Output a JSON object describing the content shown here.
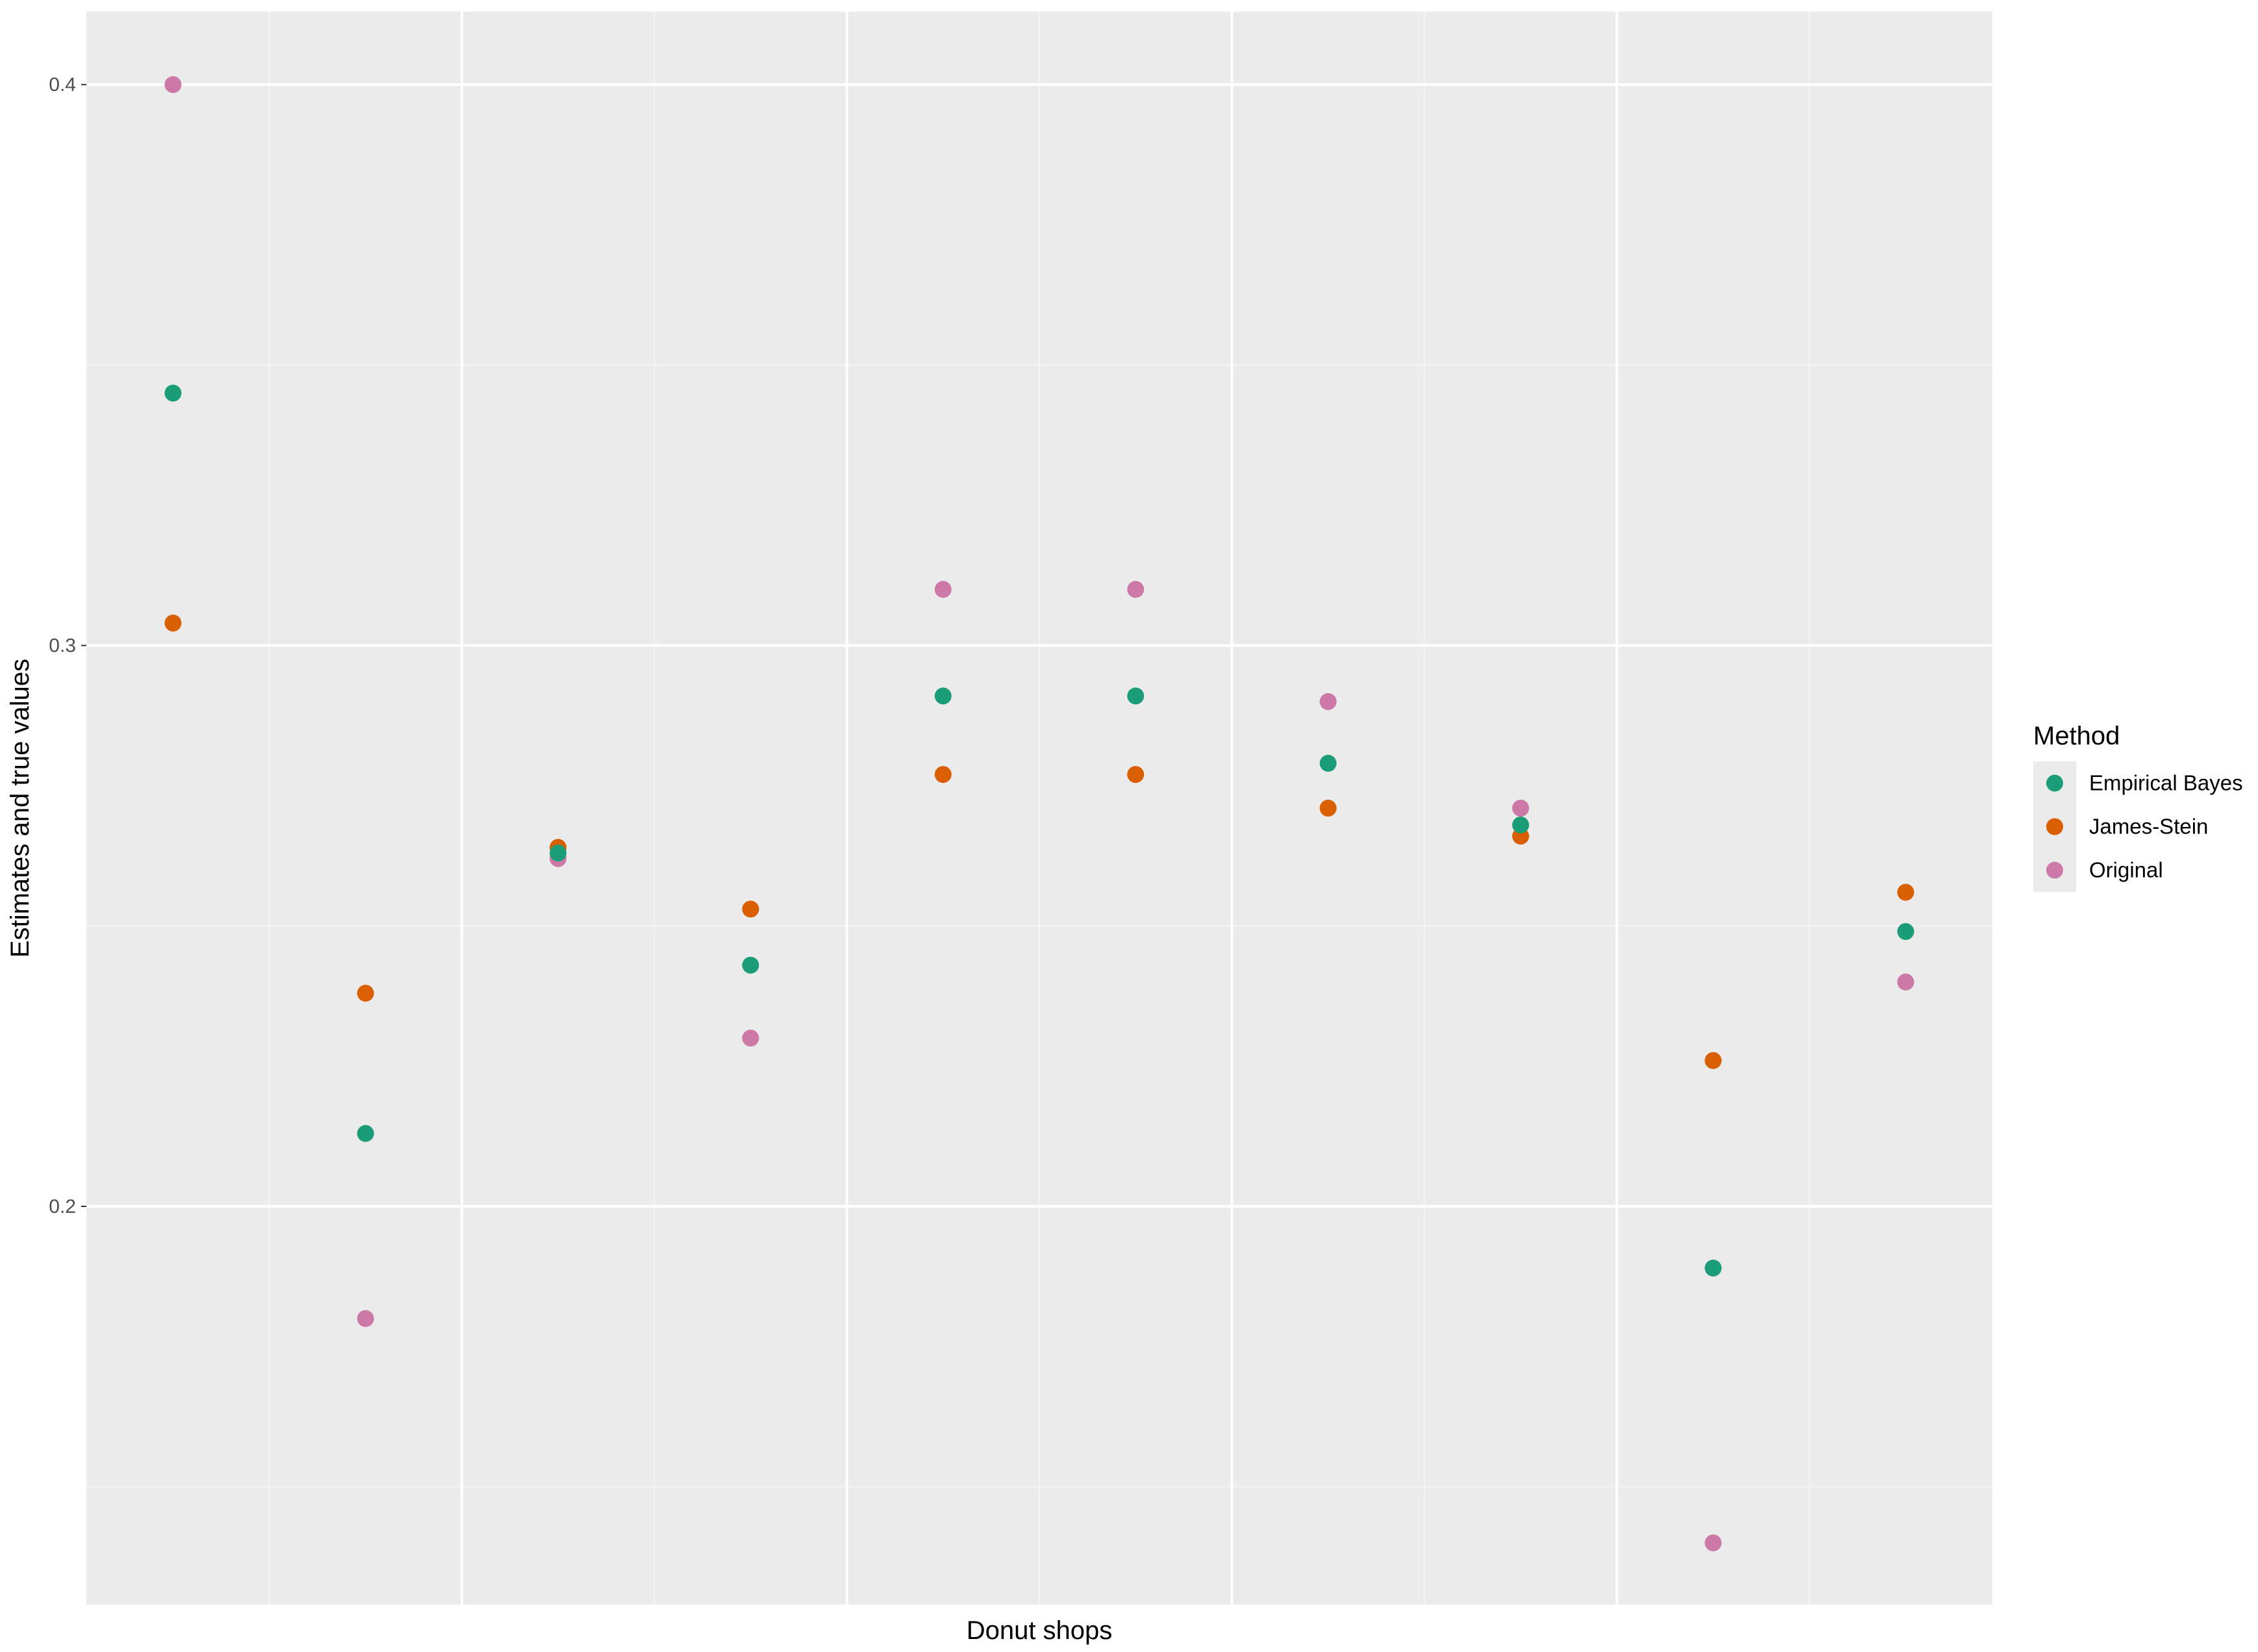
{
  "chart_data": {
    "type": "scatter",
    "title": "",
    "xlabel": "Donut shops",
    "ylabel": "Estimates and true values",
    "ylim": [
      0.129,
      0.413
    ],
    "yticks": [
      0.2,
      0.3,
      0.4
    ],
    "ytick_labels": [
      "0.2",
      "0.3",
      "0.4"
    ],
    "x_ticks_labeled": false,
    "grid": true,
    "legend_position": "right",
    "legend_title": "Method",
    "x": [
      1,
      2,
      3,
      4,
      5,
      6,
      7,
      8,
      9,
      10
    ],
    "series": [
      {
        "name": "Empirical Bayes",
        "color": "#1b9e77",
        "values": [
          0.345,
          0.213,
          0.263,
          0.243,
          0.291,
          0.291,
          0.279,
          0.268,
          0.189,
          0.249
        ]
      },
      {
        "name": "James-Stein",
        "color": "#d95f02",
        "values": [
          0.304,
          0.238,
          0.264,
          0.253,
          0.277,
          0.277,
          0.271,
          0.266,
          0.226,
          0.256
        ]
      },
      {
        "name": "Original",
        "color": "#cc79a7",
        "values": [
          0.4,
          0.18,
          0.262,
          0.23,
          0.31,
          0.31,
          0.29,
          0.271,
          0.14,
          0.24
        ]
      }
    ],
    "colors": {
      "panel_background": "#ebebeb",
      "grid_major": "#ffffff",
      "grid_minor": "#f5f5f5"
    }
  }
}
